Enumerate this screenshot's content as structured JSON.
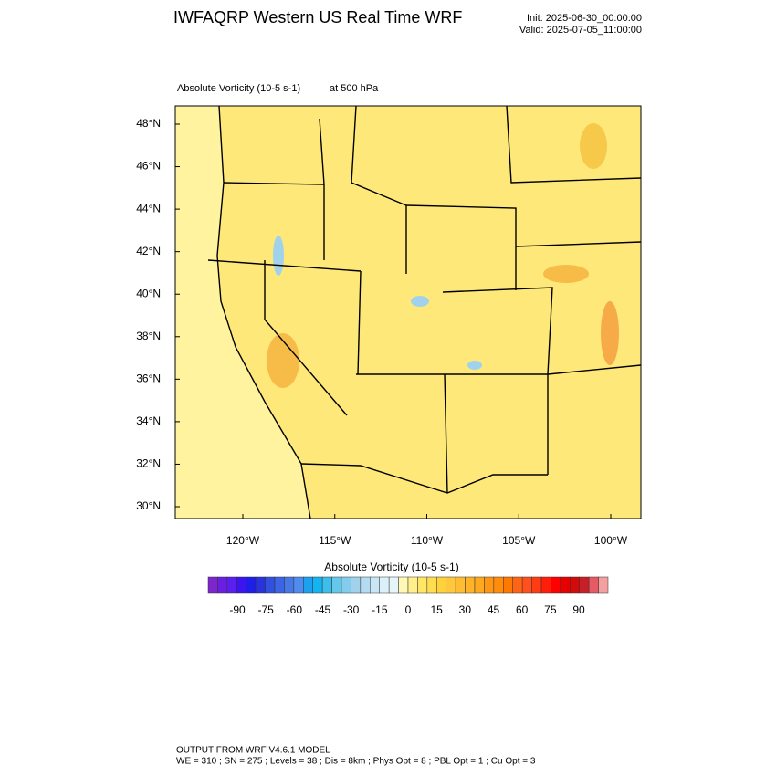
{
  "header": {
    "title": "IWFAQRP Western US Real Time WRF",
    "init": "Init: 2025-06-30_00:00:00",
    "valid": "Valid: 2025-07-05_11:00:00"
  },
  "plot": {
    "field": "Absolute Vorticity   (10-5 s-1)",
    "level": "at   500 hPa"
  },
  "map": {
    "lat_labels": [
      "48°N",
      "46°N",
      "44°N",
      "42°N",
      "40°N",
      "38°N",
      "36°N",
      "34°N",
      "32°N",
      "30°N"
    ],
    "lon_labels": [
      "120°W",
      "115°W",
      "110°W",
      "105°W",
      "100°W"
    ]
  },
  "colorbar": {
    "title": "Absolute Vorticity  (10-5 s-1)",
    "colors": [
      "#7d26cd",
      "#6a1ee0",
      "#5a1ef0",
      "#3c14f0",
      "#1e1ee6",
      "#2832e0",
      "#3250e0",
      "#3c64e6",
      "#4678e6",
      "#508cf0",
      "#1ea0f0",
      "#14b4f0",
      "#3cbeeb",
      "#64c8eb",
      "#82cdeb",
      "#a0d2eb",
      "#b4dcf0",
      "#c8e6f5",
      "#dcf0fa",
      "#e6f5fa",
      "#fff8b4",
      "#fff08c",
      "#ffe664",
      "#ffdc50",
      "#ffd23c",
      "#ffc83c",
      "#ffbe32",
      "#ffb428",
      "#ffaa1e",
      "#ff9614",
      "#ff8c0a",
      "#ff7800",
      "#ff6414",
      "#ff501e",
      "#ff3c14",
      "#ff1e0a",
      "#ff0000",
      "#e60000",
      "#d20a0a",
      "#c81e28",
      "#e65a64",
      "#f5a0a0"
    ],
    "ticks": [
      -90,
      -75,
      -60,
      -45,
      -30,
      -15,
      0,
      15,
      30,
      45,
      60,
      75,
      90
    ]
  },
  "footer": {
    "line1": "OUTPUT FROM WRF V4.6.1 MODEL",
    "line2": "WE = 310 ; SN = 275 ; Levels = 38 ; Dis = 8km ; Phys Opt = 8 ; PBL Opt = 1 ; Cu Opt = 3"
  }
}
